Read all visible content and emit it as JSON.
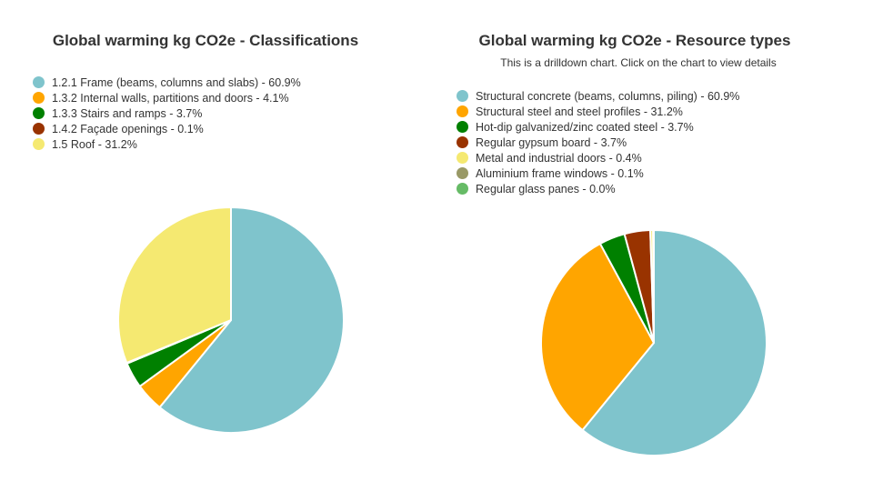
{
  "chart_data": [
    {
      "type": "pie",
      "title": "Global warming kg CO2e - Classifications",
      "legend_position": "top-left",
      "slices": [
        {
          "label": "1.2.1 Frame (beams, columns and slabs) - 60.9%",
          "value": 60.9,
          "color": "#7fc4cc"
        },
        {
          "label": "1.3.2 Internal walls, partitions and doors - 4.1%",
          "value": 4.1,
          "color": "#ffa500"
        },
        {
          "label": "1.3.3 Stairs and ramps - 3.7%",
          "value": 3.7,
          "color": "#008000"
        },
        {
          "label": "1.4.2 Façade openings - 0.1%",
          "value": 0.1,
          "color": "#993300"
        },
        {
          "label": "1.5 Roof - 31.2%",
          "value": 31.2,
          "color": "#f5e971"
        }
      ]
    },
    {
      "type": "pie",
      "title": "Global warming kg CO2e - Resource types",
      "subtitle": "This is a drilldown chart. Click on the chart to view details",
      "legend_position": "top-left",
      "slices": [
        {
          "label": "Structural concrete (beams, columns, piling) - 60.9%",
          "value": 60.9,
          "color": "#7fc4cc"
        },
        {
          "label": "Structural steel and steel profiles - 31.2%",
          "value": 31.2,
          "color": "#ffa500"
        },
        {
          "label": "Hot-dip galvanized/zinc coated steel - 3.7%",
          "value": 3.7,
          "color": "#008000"
        },
        {
          "label": "Regular gypsum board - 3.7%",
          "value": 3.7,
          "color": "#993300"
        },
        {
          "label": "Metal and industrial doors - 0.4%",
          "value": 0.4,
          "color": "#f5e971"
        },
        {
          "label": "Aluminium frame windows - 0.1%",
          "value": 0.1,
          "color": "#999966"
        },
        {
          "label": "Regular glass panes - 0.0%",
          "value": 0.0,
          "color": "#66bb66"
        }
      ]
    }
  ]
}
